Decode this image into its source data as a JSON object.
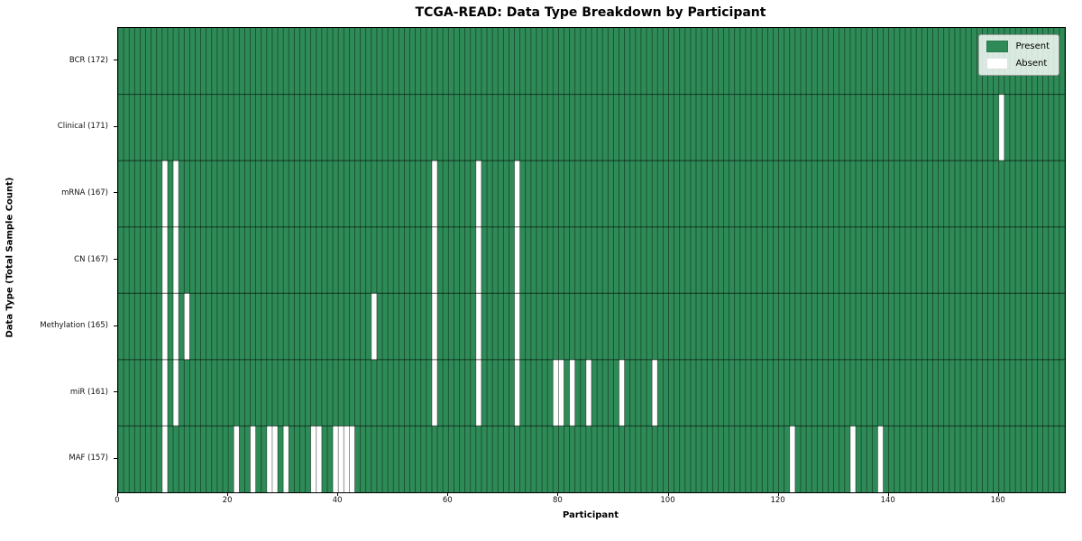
{
  "title": "TCGA-READ: Data Type Breakdown by Participant",
  "chart_data": {
    "type": "heatmap",
    "title": "TCGA-READ: Data Type Breakdown by Participant",
    "xlabel": "Participant",
    "ylabel": "Data Type (Total Sample Count)",
    "n_participants": 172,
    "x_ticks": [
      0,
      20,
      40,
      60,
      80,
      100,
      120,
      140,
      160
    ],
    "x_range": [
      0,
      172
    ],
    "grid": true,
    "legend_position": "upper right",
    "legend": [
      {
        "label": "Present",
        "color": "#2e8b57"
      },
      {
        "label": "Absent",
        "color": "#ffffff"
      }
    ],
    "rows": [
      {
        "label": "BCR (172)",
        "data_type": "BCR",
        "total_sample_count": 172,
        "absent_participants": []
      },
      {
        "label": "Clinical (171)",
        "data_type": "Clinical",
        "total_sample_count": 171,
        "absent_participants": [
          160
        ]
      },
      {
        "label": "mRNA (167)",
        "data_type": "mRNA",
        "total_sample_count": 167,
        "absent_participants": [
          8,
          10,
          57,
          65,
          72
        ]
      },
      {
        "label": "CN (167)",
        "data_type": "CN",
        "total_sample_count": 167,
        "absent_participants": [
          8,
          10,
          57,
          65,
          72
        ]
      },
      {
        "label": "Methylation (165)",
        "data_type": "Methylation",
        "total_sample_count": 165,
        "absent_participants": [
          8,
          10,
          12,
          46,
          57,
          65,
          72
        ]
      },
      {
        "label": "miR (161)",
        "data_type": "miR",
        "total_sample_count": 161,
        "absent_participants": [
          8,
          10,
          57,
          65,
          72,
          79,
          80,
          82,
          85,
          91,
          97
        ]
      },
      {
        "label": "MAF (157)",
        "data_type": "MAF",
        "total_sample_count": 157,
        "absent_participants": [
          8,
          21,
          24,
          27,
          28,
          30,
          35,
          36,
          39,
          40,
          41,
          42,
          122,
          133,
          138
        ]
      }
    ],
    "colors": {
      "present": "#2e8b57",
      "absent": "#ffffff",
      "column_grid_line": "rgba(0,0,0,0.5)",
      "row_grid_line": "rgba(0,0,0,0.6)",
      "frame": "#000000"
    }
  }
}
